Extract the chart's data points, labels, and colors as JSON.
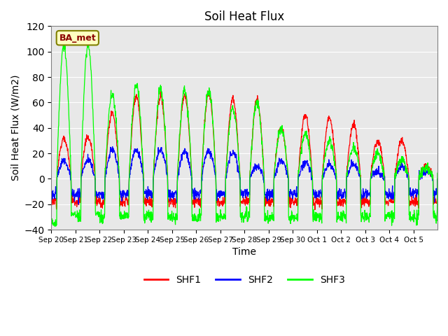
{
  "title": "Soil Heat Flux",
  "xlabel": "Time",
  "ylabel": "Soil Heat Flux (W/m2)",
  "ylim": [
    -40,
    120
  ],
  "legend_label": "BA_met",
  "series_labels": [
    "SHF1",
    "SHF2",
    "SHF3"
  ],
  "series_colors": [
    "red",
    "blue",
    "lime"
  ],
  "background_color": "#e8e8e8",
  "x_tick_labels": [
    "Sep 20",
    "Sep 21",
    "Sep 22",
    "Sep 23",
    "Sep 24",
    "Sep 25",
    "Sep 26",
    "Sep 27",
    "Sep 28",
    "Sep 29",
    "Sep 30",
    "Oct 1",
    "Oct 2",
    "Oct 3",
    "Oct 4",
    "Oct 5"
  ],
  "x_tick_positions": [
    0,
    1,
    2,
    3,
    4,
    5,
    6,
    7,
    8,
    9,
    10,
    11,
    12,
    13,
    14,
    15
  ],
  "yticks": [
    -40,
    -20,
    0,
    20,
    40,
    60,
    80,
    100,
    120
  ],
  "n_days": 16,
  "shf1_peaks": [
    32,
    33,
    52,
    65,
    65,
    65,
    68,
    63,
    62,
    40,
    50,
    48,
    43,
    30,
    30,
    10
  ],
  "shf2_peaks": [
    14,
    15,
    23,
    23,
    23,
    21,
    22,
    21,
    10,
    14,
    13,
    11,
    11,
    5,
    10,
    5
  ],
  "shf3_peaks": [
    105,
    105,
    67,
    74,
    70,
    70,
    70,
    55,
    60,
    40,
    35,
    30,
    25,
    20,
    15,
    8
  ],
  "shf1_night": -18,
  "shf2_night": -12,
  "shf3_night": -30
}
